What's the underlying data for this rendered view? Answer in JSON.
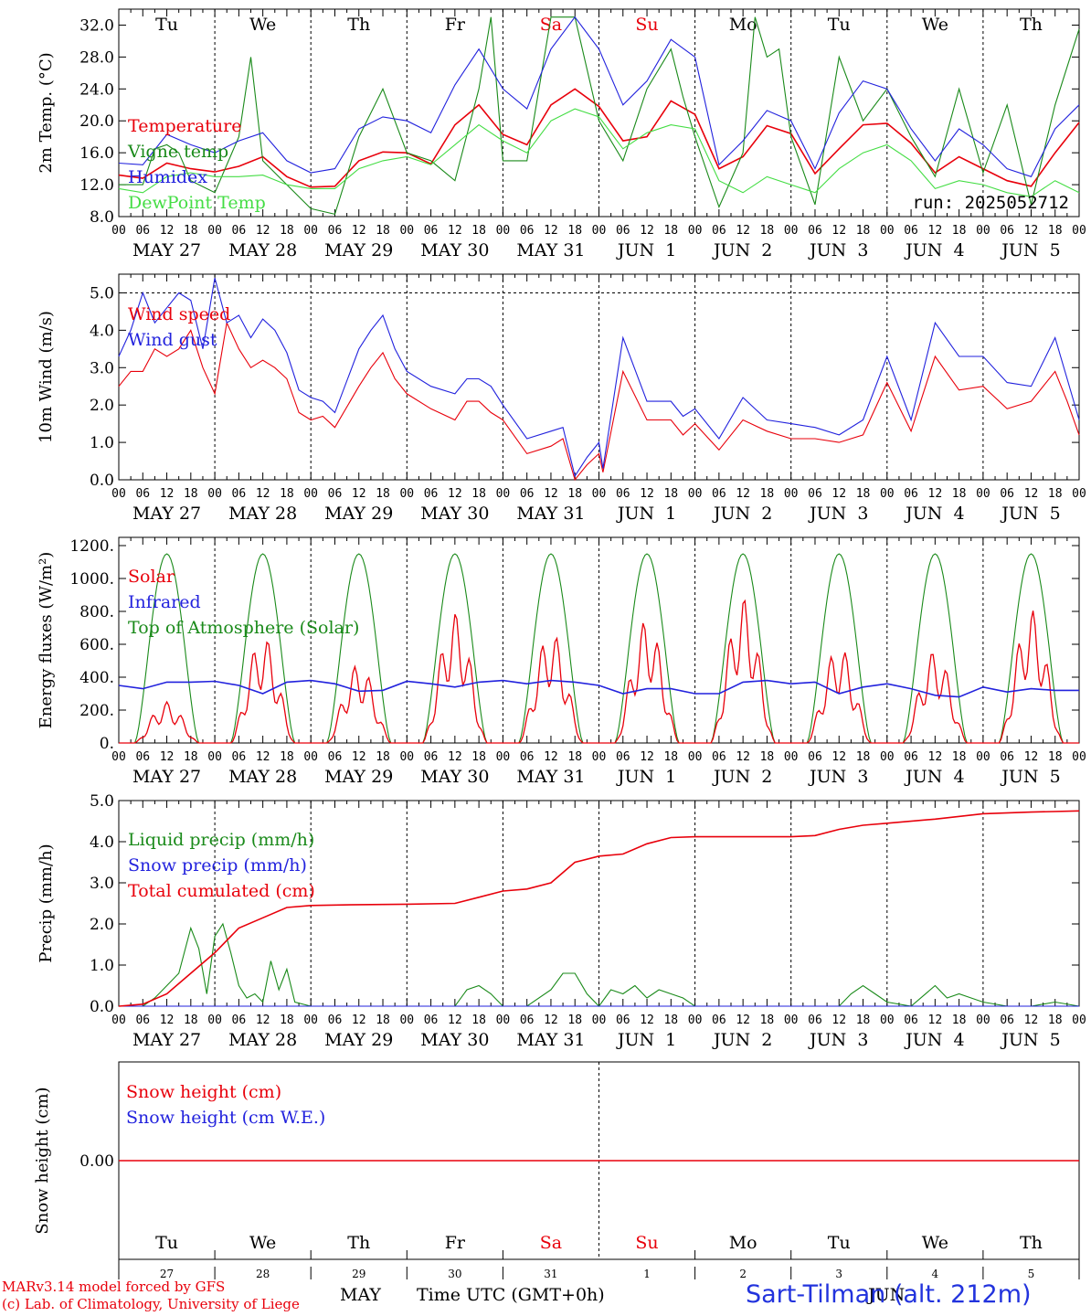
{
  "colors": {
    "red": "#e8000b",
    "green": "#1a8a1a",
    "blue": "#2222dd",
    "lightgreen": "#44dd44",
    "black": "#000000"
  },
  "days": {
    "weekdays": [
      "Tu",
      "We",
      "Th",
      "Fr",
      "Sa",
      "Su",
      "Mo",
      "Tu",
      "We",
      "Th"
    ],
    "weekend_indices": [
      4,
      5
    ],
    "dates": [
      "MAY 27",
      "MAY 28",
      "MAY 29",
      "MAY 30",
      "MAY 31",
      "JUN  1",
      "JUN  2",
      "JUN  3",
      "JUN  4",
      "JUN  5"
    ],
    "hour_ticks": [
      "00",
      "06",
      "12",
      "18"
    ],
    "hour_end": "00",
    "day_numbers": [
      "27",
      "28",
      "29",
      "30",
      "31",
      "1",
      "2",
      "3",
      "4",
      "5"
    ]
  },
  "chart_data": [
    {
      "type": "line",
      "id": "temperature",
      "ylabel": "2m Temp. (°C)",
      "ylim": [
        8,
        34
      ],
      "yticks": [
        "8.0",
        "12.0",
        "16.0",
        "20.0",
        "24.0",
        "28.0",
        "32.0"
      ],
      "ytick_values": [
        8,
        12,
        16,
        20,
        24,
        28,
        32
      ],
      "annotation": "run: 2025052712",
      "x_unit": "hours since May 27 00 UTC",
      "series": [
        {
          "name": "Temperature",
          "color": "#e8000b",
          "x": [
            0,
            6,
            12,
            18,
            24,
            30,
            36,
            42,
            48,
            54,
            60,
            66,
            72,
            78,
            84,
            90,
            96,
            102,
            108,
            114,
            120,
            126,
            132,
            138,
            144,
            150,
            156,
            162,
            168,
            174,
            180,
            186,
            192,
            198,
            204,
            210,
            216,
            222,
            228,
            234,
            240
          ],
          "values": [
            13.2,
            12.8,
            14.7,
            14.0,
            13.6,
            14.3,
            15.5,
            13.0,
            11.7,
            11.8,
            15.0,
            16.1,
            16.0,
            14.6,
            19.5,
            22.0,
            18.3,
            17.0,
            22.0,
            24.0,
            21.8,
            17.5,
            18.0,
            22.5,
            20.8,
            14.0,
            15.5,
            19.4,
            18.4,
            13.4,
            16.5,
            19.5,
            19.7,
            17.2,
            13.5,
            15.5,
            14.0,
            12.5,
            11.8,
            16.0,
            19.8
          ]
        },
        {
          "name": "Vigne temp",
          "color": "#1a8a1a",
          "x": [
            0,
            6,
            9,
            12,
            15,
            18,
            24,
            30,
            33,
            36,
            42,
            48,
            54,
            60,
            66,
            72,
            78,
            84,
            90,
            93,
            96,
            102,
            108,
            114,
            120,
            126,
            132,
            138,
            141,
            144,
            150,
            156,
            159,
            162,
            165,
            168,
            174,
            180,
            186,
            192,
            198,
            204,
            210,
            216,
            222,
            228,
            234,
            240
          ],
          "values": [
            12.0,
            12.0,
            16.5,
            17.0,
            16.0,
            12.5,
            11.0,
            18.0,
            28.0,
            15.0,
            12.0,
            9.0,
            8.3,
            18.0,
            24.0,
            16.0,
            15.0,
            12.5,
            24.0,
            33.0,
            15.0,
            15.0,
            33.0,
            33.0,
            20.0,
            15.0,
            24.0,
            29.0,
            23.0,
            18.0,
            9.2,
            16.0,
            33.0,
            28.0,
            29.0,
            18.0,
            9.5,
            28.0,
            20.0,
            24.0,
            18.0,
            13.0,
            24.0,
            13.5,
            22.0,
            9.5,
            22.0,
            31.5
          ]
        },
        {
          "name": "Humidex",
          "color": "#2222dd",
          "x": [
            0,
            6,
            12,
            18,
            24,
            30,
            36,
            42,
            48,
            54,
            60,
            66,
            72,
            78,
            84,
            90,
            96,
            102,
            108,
            114,
            120,
            126,
            132,
            138,
            144,
            150,
            156,
            162,
            168,
            174,
            180,
            186,
            192,
            198,
            204,
            210,
            216,
            222,
            228,
            234,
            240
          ],
          "values": [
            14.7,
            14.5,
            18.3,
            17.0,
            16.0,
            17.5,
            18.5,
            15.0,
            13.5,
            14.0,
            19.0,
            20.5,
            20.0,
            18.5,
            24.5,
            29.0,
            24.0,
            21.5,
            29.0,
            33.0,
            29.0,
            22.0,
            25.0,
            30.2,
            28.0,
            14.5,
            17.5,
            21.3,
            20.0,
            14.0,
            21.0,
            25.0,
            24.0,
            19.0,
            15.0,
            19.0,
            17.0,
            14.0,
            13.0,
            19.0,
            22.0
          ]
        },
        {
          "name": "DewPoint Temp",
          "color": "#44dd44",
          "x": [
            0,
            6,
            12,
            18,
            24,
            30,
            36,
            42,
            48,
            54,
            60,
            66,
            72,
            78,
            84,
            90,
            96,
            102,
            108,
            114,
            120,
            126,
            132,
            138,
            144,
            150,
            156,
            162,
            168,
            174,
            180,
            186,
            192,
            198,
            204,
            210,
            216,
            222,
            228,
            234,
            240
          ],
          "values": [
            11.5,
            11.0,
            13.0,
            13.5,
            13.0,
            13.0,
            13.2,
            12.0,
            11.5,
            11.5,
            14.0,
            15.0,
            15.5,
            14.5,
            17.0,
            19.5,
            17.5,
            16.0,
            20.0,
            21.5,
            20.5,
            16.5,
            18.5,
            19.5,
            19.0,
            12.5,
            11.0,
            13.0,
            12.0,
            11.0,
            14.0,
            16.0,
            17.0,
            15.0,
            11.5,
            12.5,
            12.0,
            11.0,
            10.5,
            12.5,
            11.0
          ]
        }
      ]
    },
    {
      "type": "line",
      "id": "wind",
      "ylabel": "10m Wind (m/s)",
      "ylim": [
        0,
        5.5
      ],
      "yticks": [
        "0.0",
        "1.0",
        "2.0",
        "3.0",
        "4.0",
        "5.0"
      ],
      "ytick_values": [
        0,
        1,
        2,
        3,
        4,
        5
      ],
      "series": [
        {
          "name": "Wind speed",
          "color": "#e8000b",
          "x": [
            0,
            3,
            6,
            9,
            12,
            15,
            18,
            21,
            24,
            27,
            30,
            33,
            36,
            39,
            42,
            45,
            48,
            51,
            54,
            60,
            63,
            66,
            69,
            72,
            78,
            84,
            87,
            90,
            93,
            96,
            102,
            108,
            111,
            114,
            117,
            120,
            121,
            126,
            132,
            138,
            141,
            144,
            150,
            156,
            162,
            168,
            174,
            180,
            186,
            192,
            198,
            204,
            210,
            216,
            222,
            228,
            234,
            237,
            240
          ],
          "values": [
            2.5,
            2.9,
            2.9,
            3.5,
            3.3,
            3.5,
            4.0,
            3.0,
            2.3,
            4.2,
            3.5,
            3.0,
            3.2,
            3.0,
            2.7,
            1.8,
            1.6,
            1.7,
            1.4,
            2.5,
            3.0,
            3.4,
            2.7,
            2.3,
            1.9,
            1.6,
            2.1,
            2.1,
            1.8,
            1.6,
            0.7,
            0.9,
            1.1,
            0.0,
            0.4,
            0.7,
            0.2,
            2.9,
            1.6,
            1.6,
            1.2,
            1.5,
            0.8,
            1.6,
            1.3,
            1.1,
            1.1,
            1.0,
            1.2,
            2.6,
            1.3,
            3.3,
            2.4,
            2.5,
            1.9,
            2.1,
            2.9,
            2.1,
            1.2
          ]
        },
        {
          "name": "Wind gust",
          "color": "#2222dd",
          "x": [
            0,
            3,
            6,
            9,
            12,
            15,
            18,
            21,
            24,
            27,
            30,
            33,
            36,
            39,
            42,
            45,
            48,
            51,
            54,
            60,
            63,
            66,
            69,
            72,
            78,
            84,
            87,
            90,
            93,
            96,
            102,
            108,
            111,
            114,
            117,
            120,
            121,
            126,
            132,
            138,
            141,
            144,
            150,
            156,
            162,
            168,
            174,
            180,
            186,
            192,
            198,
            204,
            210,
            216,
            222,
            228,
            234,
            237,
            240
          ],
          "values": [
            3.3,
            4.0,
            5.0,
            4.2,
            4.6,
            5.0,
            4.8,
            3.5,
            5.4,
            4.2,
            4.4,
            3.8,
            4.3,
            4.0,
            3.4,
            2.4,
            2.2,
            2.1,
            1.8,
            3.5,
            4.0,
            4.4,
            3.5,
            2.9,
            2.5,
            2.3,
            2.7,
            2.7,
            2.5,
            2.0,
            1.1,
            1.3,
            1.4,
            0.1,
            0.6,
            1.0,
            0.3,
            3.8,
            2.1,
            2.1,
            1.7,
            1.9,
            1.1,
            2.2,
            1.6,
            1.5,
            1.4,
            1.2,
            1.6,
            3.3,
            1.6,
            4.2,
            3.3,
            3.3,
            2.6,
            2.5,
            3.8,
            2.7,
            1.6
          ]
        }
      ]
    },
    {
      "type": "line",
      "id": "energy",
      "ylabel": "Energy fluxes (W/m²)",
      "ylim": [
        0,
        1250
      ],
      "yticks": [
        "0.",
        "200.",
        "400.",
        "600.",
        "800.",
        "1000.",
        "1200."
      ],
      "ytick_values": [
        0,
        200,
        400,
        600,
        800,
        1000,
        1200
      ],
      "toa_peak": 1150,
      "solar_peaks": [
        250,
        650,
        480,
        790,
        680,
        750,
        880,
        590,
        560,
        810
      ],
      "infrared_values": [
        350,
        330,
        370,
        370,
        375,
        350,
        300,
        370,
        380,
        360,
        315,
        320,
        375,
        360,
        340,
        370,
        380,
        360,
        380,
        370,
        350,
        300,
        330,
        330,
        300,
        300,
        370,
        380,
        360,
        370,
        300,
        340,
        360,
        330,
        290,
        280,
        340,
        310,
        330,
        320,
        320
      ],
      "series": [
        {
          "name": "Solar",
          "color": "#e8000b"
        },
        {
          "name": "Infrared",
          "color": "#2222dd"
        },
        {
          "name": "Top of Atmosphere (Solar)",
          "color": "#1a8a1a"
        }
      ]
    },
    {
      "type": "line",
      "id": "precip",
      "ylabel": "Precip (mm/h)",
      "ylim": [
        0,
        5
      ],
      "yticks": [
        "0.0",
        "1.0",
        "2.0",
        "3.0",
        "4.0",
        "5.0"
      ],
      "ytick_values": [
        0,
        1,
        2,
        3,
        4,
        5
      ],
      "series": [
        {
          "name": "Liquid precip (mm/h)",
          "color": "#1a8a1a",
          "x": [
            0,
            6,
            9,
            12,
            15,
            18,
            20,
            22,
            24,
            26,
            28,
            30,
            32,
            34,
            36,
            38,
            40,
            42,
            44,
            48,
            60,
            84,
            87,
            90,
            93,
            96,
            102,
            108,
            111,
            114,
            117,
            120,
            123,
            126,
            129,
            132,
            135,
            138,
            141,
            144,
            168,
            180,
            183,
            186,
            189,
            192,
            198,
            204,
            207,
            210,
            213,
            216,
            222,
            228,
            234,
            240
          ],
          "values": [
            0,
            0,
            0.2,
            0.5,
            0.8,
            1.9,
            1.4,
            0.3,
            1.7,
            2.0,
            1.3,
            0.5,
            0.2,
            0.3,
            0.1,
            1.1,
            0.4,
            0.9,
            0.1,
            0,
            0,
            0,
            0.4,
            0.5,
            0.3,
            0,
            0,
            0.4,
            0.8,
            0.8,
            0.3,
            0,
            0.4,
            0.3,
            0.5,
            0.2,
            0.4,
            0.3,
            0.2,
            0,
            0,
            0,
            0.3,
            0.5,
            0.3,
            0.1,
            0,
            0.5,
            0.2,
            0.3,
            0.2,
            0.1,
            0,
            0,
            0.1,
            0
          ]
        },
        {
          "name": "Snow precip (mm/h)",
          "color": "#2222dd",
          "x": [
            0,
            240
          ],
          "values": [
            0,
            0
          ]
        },
        {
          "name": "Total cumulated (cm)",
          "color": "#e8000b",
          "x": [
            0,
            6,
            12,
            18,
            24,
            30,
            36,
            42,
            48,
            60,
            72,
            84,
            90,
            96,
            102,
            108,
            114,
            120,
            126,
            132,
            138,
            144,
            156,
            168,
            174,
            180,
            186,
            192,
            204,
            216,
            228,
            240
          ],
          "values": [
            0,
            0.05,
            0.3,
            0.8,
            1.3,
            1.9,
            2.15,
            2.4,
            2.45,
            2.47,
            2.48,
            2.5,
            2.65,
            2.8,
            2.85,
            3.0,
            3.5,
            3.65,
            3.7,
            3.95,
            4.1,
            4.12,
            4.12,
            4.12,
            4.15,
            4.3,
            4.4,
            4.45,
            4.55,
            4.68,
            4.72,
            4.75
          ]
        }
      ]
    },
    {
      "type": "line",
      "id": "snow",
      "ylabel": "Snow height (cm)",
      "yticks": [
        "0.00"
      ],
      "ytick_values": [
        0
      ],
      "ylim": [
        -1,
        1
      ],
      "series": [
        {
          "name": "Snow height (cm)",
          "color": "#e8000b",
          "x": [
            0,
            240
          ],
          "values": [
            0,
            0
          ]
        },
        {
          "name": "Snow height (cm W.E.)",
          "color": "#2222dd"
        }
      ]
    }
  ],
  "footer": {
    "model": "MARv3.14 model forced by GFS",
    "credit": "(c) Lab. of Climatology, University of Liege",
    "month_may": "MAY",
    "time_label": "Time UTC (GMT+0h)",
    "month_jun": "JUN",
    "station": "Sart-Tilman (alt. 212m)"
  }
}
